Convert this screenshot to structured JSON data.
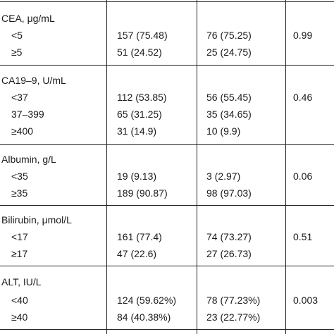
{
  "sections": [
    {
      "title": "CEA, μg/mL",
      "rows": [
        {
          "label": "<5",
          "col1": "157 (75.48)",
          "col2": "76 (75.25)",
          "p": "0.99"
        },
        {
          "label": "≥5",
          "col1": "51 (24.52)",
          "col2": "25 (24.75)",
          "p": ""
        }
      ]
    },
    {
      "title": "CA19–9, U/mL",
      "rows": [
        {
          "label": "<37",
          "col1": "112 (53.85)",
          "col2": "56 (55.45)",
          "p": "0.46"
        },
        {
          "label": "37–399",
          "col1": "65 (31.25)",
          "col2": "35 (34.65)",
          "p": ""
        },
        {
          "label": "≥400",
          "col1": "31 (14.9)",
          "col2": "10 (9.9)",
          "p": ""
        }
      ]
    },
    {
      "title": "Albumin, g/L",
      "rows": [
        {
          "label": "<35",
          "col1": "19 (9.13)",
          "col2": "3 (2.97)",
          "p": "0.06"
        },
        {
          "label": "≥35",
          "col1": "189 (90.87)",
          "col2": "98 (97.03)",
          "p": ""
        }
      ]
    },
    {
      "title": "Bilirubin, μmol/L",
      "rows": [
        {
          "label": "<17",
          "col1": "161 (77.4)",
          "col2": "74 (73.27)",
          "p": "0.51"
        },
        {
          "label": "≥17",
          "col1": "47 (22.6)",
          "col2": "27 (26.73)",
          "p": ""
        }
      ]
    },
    {
      "title": "ALT, IU/L",
      "rows": [
        {
          "label": "<40",
          "col1": "124 (59.62%)",
          "col2": "78 (77.23%)",
          "p": "0.003"
        },
        {
          "label": "≥40",
          "col1": "84 (40.38%)",
          "col2": "23 (22.77%)",
          "p": ""
        }
      ]
    }
  ]
}
